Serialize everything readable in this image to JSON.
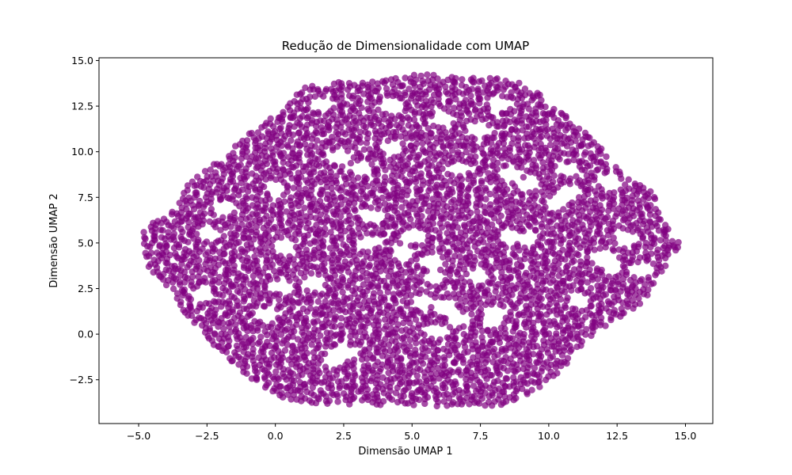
{
  "chart_data": {
    "type": "scatter",
    "title": "Redução de Dimensionalidade com UMAP",
    "xlabel": "Dimensão UMAP 1",
    "ylabel": "Dimensão UMAP 2",
    "xlim": [
      -6.45,
      16.0
    ],
    "ylim": [
      -4.9,
      15.15
    ],
    "x_ticks": [
      -5.0,
      -2.5,
      0.0,
      2.5,
      5.0,
      7.5,
      10.0,
      12.5,
      15.0
    ],
    "x_tick_labels": [
      "−5.0",
      "−2.5",
      "0.0",
      "2.5",
      "5.0",
      "7.5",
      "10.0",
      "12.5",
      "15.0"
    ],
    "y_ticks": [
      -2.5,
      0.0,
      2.5,
      5.0,
      7.5,
      10.0,
      12.5,
      15.0
    ],
    "y_tick_labels": [
      "−2.5",
      "0.0",
      "2.5",
      "5.0",
      "7.5",
      "10.0",
      "12.5",
      "15.0"
    ],
    "grid": false,
    "legend": "none",
    "marker_color": "#800080",
    "marker_alpha": 0.7,
    "outline": [
      [
        -4.8,
        4.6
      ],
      [
        -4.9,
        5.6
      ],
      [
        -4.5,
        6.2
      ],
      [
        -3.6,
        7.0
      ],
      [
        -3.2,
        8.2
      ],
      [
        -2.3,
        9.3
      ],
      [
        -1.8,
        9.6
      ],
      [
        -1.5,
        10.4
      ],
      [
        -0.6,
        11.4
      ],
      [
        0.2,
        12.3
      ],
      [
        0.5,
        12.7
      ],
      [
        1.0,
        13.5
      ],
      [
        2.0,
        13.8
      ],
      [
        3.5,
        13.9
      ],
      [
        4.5,
        14.1
      ],
      [
        5.5,
        14.3
      ],
      [
        6.5,
        14.1
      ],
      [
        7.8,
        14.1
      ],
      [
        8.8,
        13.9
      ],
      [
        9.6,
        13.4
      ],
      [
        10.2,
        12.5
      ],
      [
        11.0,
        11.5
      ],
      [
        11.8,
        10.5
      ],
      [
        12.2,
        9.6
      ],
      [
        12.9,
        8.6
      ],
      [
        13.8,
        7.9
      ],
      [
        14.0,
        7.0
      ],
      [
        14.2,
        6.1
      ],
      [
        14.8,
        5.0
      ],
      [
        14.7,
        4.5
      ],
      [
        14.2,
        3.6
      ],
      [
        13.6,
        2.0
      ],
      [
        13.0,
        1.2
      ],
      [
        12.2,
        0.6
      ],
      [
        11.6,
        -0.1
      ],
      [
        11.0,
        -1.0
      ],
      [
        10.5,
        -1.9
      ],
      [
        9.8,
        -2.8
      ],
      [
        9.0,
        -3.5
      ],
      [
        8.2,
        -3.9
      ],
      [
        6.5,
        -4.0
      ],
      [
        5.0,
        -3.9
      ],
      [
        3.0,
        -3.9
      ],
      [
        1.5,
        -3.8
      ],
      [
        0.5,
        -3.6
      ],
      [
        -0.5,
        -3.0
      ],
      [
        -1.3,
        -2.0
      ],
      [
        -1.9,
        -1.0
      ],
      [
        -2.5,
        -0.3
      ],
      [
        -3.0,
        0.7
      ],
      [
        -3.5,
        1.5
      ],
      [
        -3.7,
        2.4
      ],
      [
        -4.5,
        3.2
      ],
      [
        -4.8,
        4.0
      ]
    ],
    "holes": [
      [
        4.7,
        4.5
      ],
      [
        5.0,
        5.3
      ],
      [
        5.7,
        4.0
      ],
      [
        5.8,
        3.1
      ],
      [
        5.4,
        1.8
      ],
      [
        6.2,
        1.5
      ],
      [
        6.7,
        0.8
      ],
      [
        5.8,
        0.2
      ],
      [
        8.6,
        5.4
      ],
      [
        9.2,
        5.2
      ],
      [
        10.3,
        7.2
      ],
      [
        10.7,
        7.6
      ],
      [
        2.3,
        9.7
      ],
      [
        3.1,
        9.1
      ],
      [
        1.4,
        2.8
      ],
      [
        0.2,
        2.6
      ],
      [
        7.4,
        3.2
      ],
      [
        7.9,
        0.7
      ],
      [
        8.0,
        1.2
      ],
      [
        12.3,
        3.8
      ],
      [
        11.9,
        4.2
      ],
      [
        3.4,
        5.0
      ],
      [
        0.0,
        8.0
      ],
      [
        -1.9,
        6.9
      ],
      [
        -2.4,
        5.5
      ],
      [
        -2.7,
        2.2
      ],
      [
        -0.3,
        1.1
      ],
      [
        2.2,
        -1.4
      ],
      [
        2.6,
        -1.0
      ],
      [
        6.1,
        11.8
      ],
      [
        7.4,
        11.2
      ],
      [
        8.2,
        12.6
      ],
      [
        4.2,
        12.5
      ],
      [
        1.7,
        12.6
      ],
      [
        9.3,
        8.2
      ],
      [
        10.7,
        9.0
      ],
      [
        12.8,
        5.3
      ],
      [
        13.4,
        3.5
      ],
      [
        12.2,
        8.3
      ],
      [
        8.5,
        8.8
      ],
      [
        3.5,
        6.5
      ],
      [
        0.3,
        4.8
      ],
      [
        4.3,
        10.2
      ],
      [
        6.7,
        9.1
      ],
      [
        11.1,
        1.8
      ]
    ]
  }
}
